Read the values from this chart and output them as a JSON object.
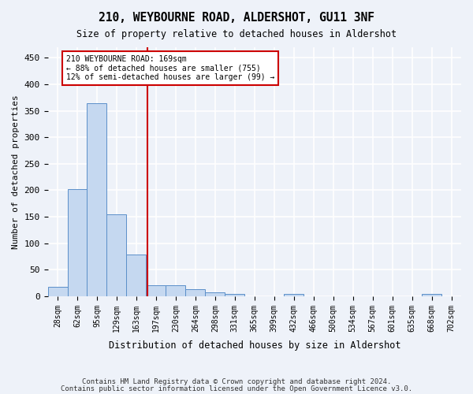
{
  "title": "210, WEYBOURNE ROAD, ALDERSHOT, GU11 3NF",
  "subtitle": "Size of property relative to detached houses in Aldershot",
  "xlabel": "Distribution of detached houses by size in Aldershot",
  "ylabel": "Number of detached properties",
  "bins": [
    "28sqm",
    "62sqm",
    "95sqm",
    "129sqm",
    "163sqm",
    "197sqm",
    "230sqm",
    "264sqm",
    "298sqm",
    "331sqm",
    "365sqm",
    "399sqm",
    "432sqm",
    "466sqm",
    "500sqm",
    "534sqm",
    "567sqm",
    "601sqm",
    "635sqm",
    "668sqm",
    "702sqm"
  ],
  "values": [
    18,
    202,
    365,
    155,
    78,
    20,
    20,
    14,
    8,
    5,
    0,
    0,
    4,
    0,
    0,
    0,
    0,
    0,
    0,
    4,
    0
  ],
  "bar_color": "#c5d8f0",
  "bar_edge_color": "#5b8fc9",
  "vline_x": 4.55,
  "vline_color": "#cc0000",
  "annotation_text": "210 WEYBOURNE ROAD: 169sqm\n← 88% of detached houses are smaller (755)\n12% of semi-detached houses are larger (99) →",
  "annotation_box_color": "#ffffff",
  "annotation_box_edge_color": "#cc0000",
  "ylim": [
    0,
    470
  ],
  "yticks": [
    0,
    50,
    100,
    150,
    200,
    250,
    300,
    350,
    400,
    450
  ],
  "footnote1": "Contains HM Land Registry data © Crown copyright and database right 2024.",
  "footnote2": "Contains public sector information licensed under the Open Government Licence v3.0.",
  "background_color": "#eef2f9",
  "grid_color": "#ffffff"
}
